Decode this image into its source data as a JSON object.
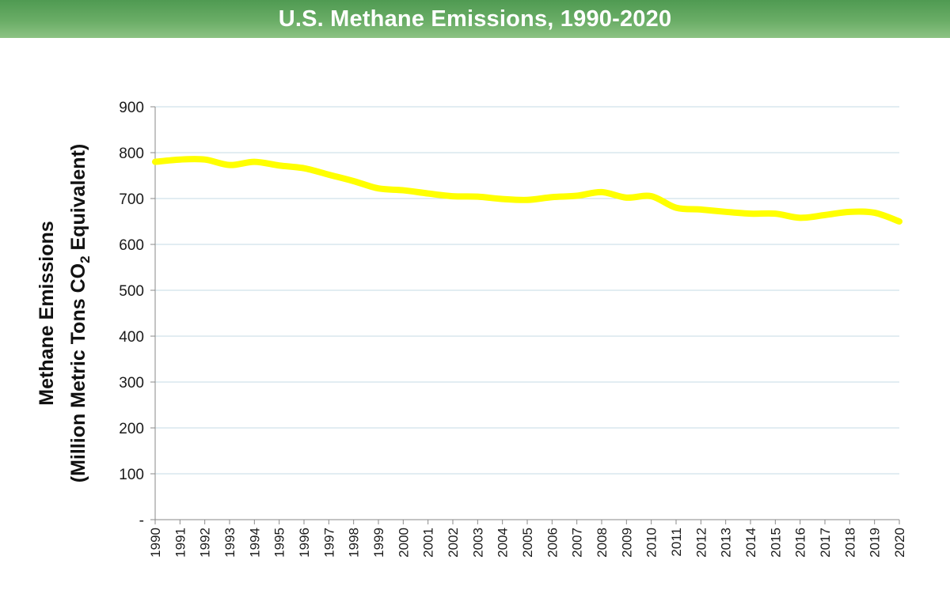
{
  "header": {
    "title": "U.S. Methane Emissions, 1990-2020"
  },
  "colors": {
    "line": "#ffff00",
    "grid": "#c6dbe6",
    "axis": "#8a8a8a",
    "title_bg": "#5fa55d"
  },
  "chart_data": {
    "type": "line",
    "title": "U.S. Methane Emissions, 1990-2020",
    "ylabel_line1": "Methane Emissions",
    "ylabel_line2_prefix": "(Million Metric Tons CO",
    "ylabel_line2_sub": "2",
    "ylabel_line2_suffix": " Equivalent)",
    "xlabel": "",
    "ylim": [
      0,
      900
    ],
    "yticks": [
      0,
      100,
      200,
      300,
      400,
      500,
      600,
      700,
      800,
      900
    ],
    "ytick_labels": [
      "-",
      "100",
      "200",
      "300",
      "400",
      "500",
      "600",
      "700",
      "800",
      "900"
    ],
    "grid": true,
    "legend": "none",
    "categories": [
      "1990",
      "1991",
      "1992",
      "1993",
      "1994",
      "1995",
      "1996",
      "1997",
      "1998",
      "1999",
      "2000",
      "2001",
      "2002",
      "2003",
      "2004",
      "2005",
      "2006",
      "2007",
      "2008",
      "2009",
      "2010",
      "2011",
      "2012",
      "2013",
      "2014",
      "2015",
      "2016",
      "2017",
      "2018",
      "2019",
      "2020"
    ],
    "series": [
      {
        "name": "Methane Emissions",
        "values": [
          780,
          785,
          785,
          773,
          780,
          772,
          766,
          752,
          738,
          722,
          718,
          711,
          705,
          704,
          699,
          697,
          703,
          706,
          714,
          702,
          705,
          680,
          676,
          671,
          667,
          667,
          658,
          664,
          671,
          669,
          650
        ]
      }
    ]
  }
}
